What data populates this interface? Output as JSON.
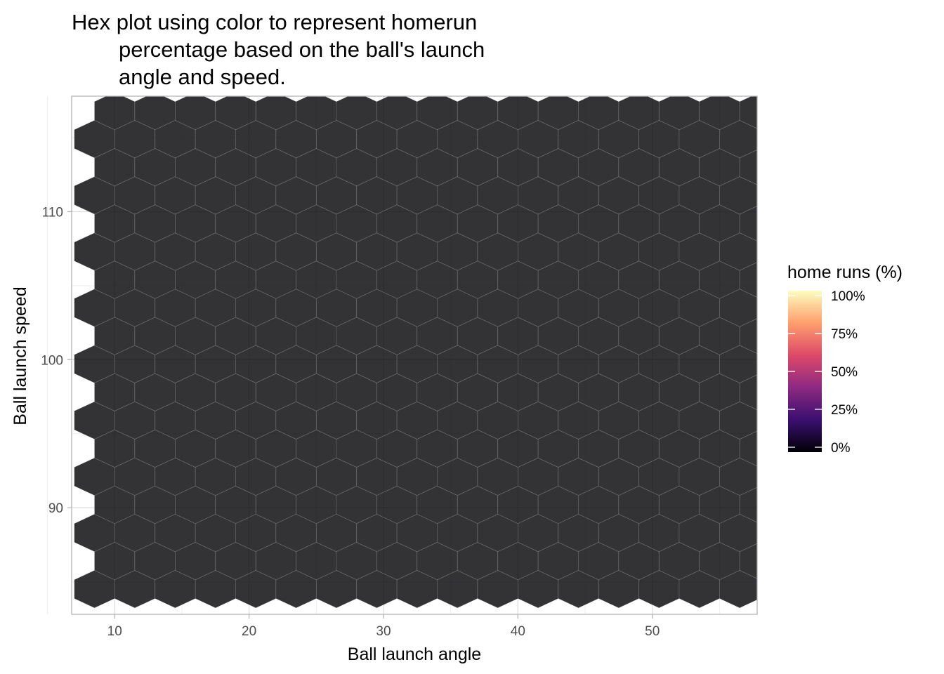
{
  "chart_data": {
    "type": "heatmap",
    "geometry": "hexbin",
    "title_lines": [
      "Hex plot using color to represent homerun",
      "percentage based on the ball's launch",
      "angle and speed."
    ],
    "xlabel": "Ball launch angle",
    "ylabel": "Ball launch speed",
    "xlim": [
      6.8,
      57.8
    ],
    "ylim": [
      82.8,
      117.8
    ],
    "x_ticks": [
      10,
      20,
      30,
      40,
      50
    ],
    "y_ticks": [
      90,
      100,
      110
    ],
    "grid": true,
    "legend": {
      "title": "home runs (%)",
      "placement": "right",
      "tick_values": [
        100,
        75,
        50,
        25,
        0
      ],
      "tick_labels": [
        "100%",
        "75%",
        "50%",
        "25%",
        "0%"
      ],
      "colors": [
        "#000004",
        "#3b0f70",
        "#8c2981",
        "#de4968",
        "#fe9f6d",
        "#fcfdbf"
      ]
    },
    "cell_opacity": 0.8,
    "hex_grid": {
      "x_spacing": 3.0,
      "y_spacing": 1.9,
      "x0": 8.5,
      "y0": 84.5
    },
    "values_pct": [
      [
        0,
        0,
        0,
        0,
        0,
        0,
        0,
        0,
        0,
        0,
        0,
        0,
        0,
        0,
        0,
        0,
        0
      ],
      [
        0,
        0,
        0,
        0,
        0,
        0,
        0,
        0,
        0,
        0,
        0,
        0,
        0,
        0,
        0,
        0,
        0
      ],
      [
        0,
        0,
        0,
        0,
        0,
        0,
        0,
        0,
        0,
        0,
        0,
        0,
        0,
        0,
        0,
        0,
        0
      ],
      [
        0,
        0,
        0,
        0,
        0,
        0,
        0,
        0,
        0,
        0,
        0,
        0,
        0,
        0,
        0,
        0,
        0
      ],
      [
        0,
        0,
        0,
        0,
        0,
        0,
        0,
        0,
        0,
        0,
        0,
        0,
        0,
        0,
        0,
        0,
        0
      ],
      [
        0,
        0,
        0,
        0,
        0,
        0,
        0,
        0,
        0,
        0,
        0,
        0,
        0,
        0,
        0,
        0,
        0
      ],
      [
        0,
        0,
        0,
        0,
        0,
        0,
        0,
        0,
        0,
        0,
        0,
        0,
        0,
        0,
        0,
        0,
        0
      ],
      [
        0,
        0,
        0,
        0,
        0,
        0,
        0,
        0,
        0,
        0,
        0,
        0,
        0,
        0,
        0,
        0,
        0
      ],
      [
        0,
        0,
        0,
        0,
        0,
        0,
        0,
        0,
        0,
        0,
        0,
        0,
        0,
        0,
        0,
        0,
        0
      ],
      [
        0,
        0,
        0,
        0,
        0,
        0,
        0,
        0,
        0,
        0,
        0,
        0,
        0,
        0,
        0,
        0,
        0
      ],
      [
        0,
        0,
        0,
        0,
        0,
        0,
        0,
        0,
        0,
        0,
        0,
        0,
        0,
        0,
        0,
        0,
        0
      ],
      [
        0,
        0,
        0,
        0,
        0,
        0,
        0,
        0,
        0,
        0,
        0,
        0,
        0,
        0,
        0,
        0,
        0
      ],
      [
        0,
        0,
        0,
        0,
        0,
        0,
        0,
        0,
        0,
        0,
        0,
        0,
        0,
        0,
        0,
        0,
        0
      ],
      [
        0,
        0,
        0,
        0,
        0,
        0,
        0,
        0,
        0,
        0,
        0,
        0,
        0,
        0,
        0,
        0,
        0
      ],
      [
        0,
        0,
        0,
        0,
        0,
        0,
        0,
        0,
        0,
        0,
        0,
        0,
        0,
        0,
        0,
        0,
        0
      ],
      [
        0,
        0,
        0,
        0,
        0,
        0,
        0,
        0,
        0,
        0,
        0,
        0,
        0,
        0,
        0,
        0,
        0
      ],
      [
        0,
        0,
        0,
        0,
        0,
        0,
        0,
        0,
        0,
        0,
        0,
        0,
        0,
        0,
        0,
        0,
        0
      ],
      [
        0,
        0,
        0,
        0,
        0,
        0,
        0,
        0,
        0,
        0,
        0,
        0,
        0,
        0,
        0,
        0,
        0
      ]
    ]
  }
}
